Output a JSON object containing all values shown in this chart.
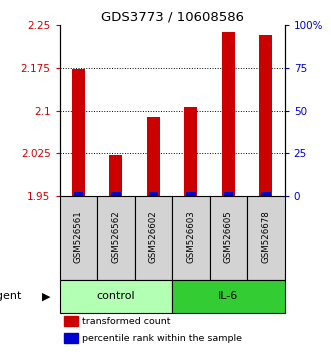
{
  "title": "GDS3773 / 10608586",
  "samples": [
    "GSM526561",
    "GSM526562",
    "GSM526602",
    "GSM526603",
    "GSM526605",
    "GSM526678"
  ],
  "red_values": [
    2.172,
    2.022,
    2.088,
    2.107,
    2.237,
    2.233
  ],
  "blue_heights": [
    0.008,
    0.008,
    0.008,
    0.008,
    0.008,
    0.008
  ],
  "ymin": 1.95,
  "ymax": 2.25,
  "yticks_left": [
    1.95,
    2.025,
    2.1,
    2.175,
    2.25
  ],
  "yticks_right": [
    0,
    25,
    50,
    75,
    100
  ],
  "ytick_labels_left": [
    "1.95",
    "2.025",
    "2.1",
    "2.175",
    "2.25"
  ],
  "ytick_labels_right": [
    "0",
    "25",
    "50",
    "75",
    "100%"
  ],
  "grid_values": [
    2.025,
    2.1,
    2.175
  ],
  "control_color": "#b3ffb3",
  "il6_color": "#33cc33",
  "bar_width": 0.35,
  "blue_bar_width": 0.25,
  "red_color": "#cc0000",
  "blue_color": "#0000cc",
  "legend_red": "transformed count",
  "legend_blue": "percentile rank within the sample",
  "bar_bottom": 1.95,
  "label_fontsize": 7,
  "title_fontsize": 9.5
}
